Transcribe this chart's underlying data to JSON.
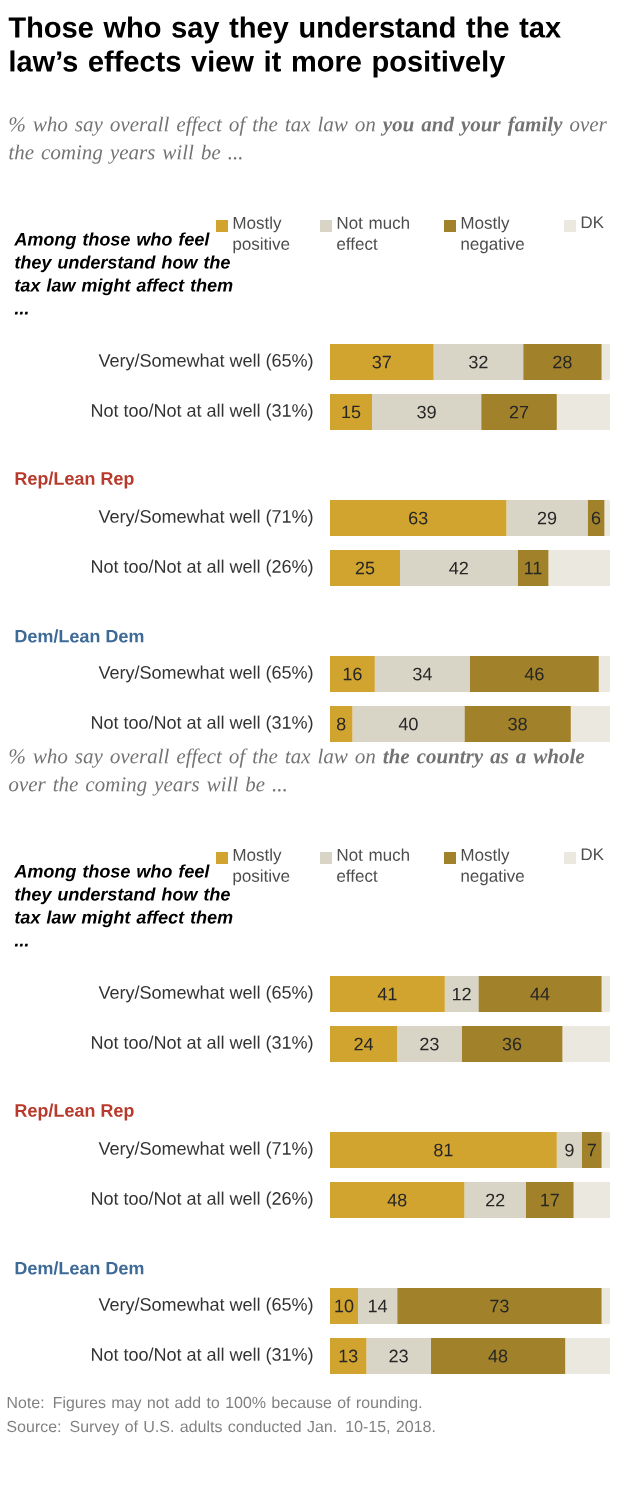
{
  "chart_data": [
    {
      "type": "bar",
      "orientation": "horizontal",
      "stacked": true,
      "legend": "top",
      "title": "Those who say they understand the tax law’s effects view it more positively",
      "subtitle": "% who say overall effect of the tax law on **you and your family** over the coming years will be ...",
      "categories": [
        "Very/Somewhat well (65%)",
        "Not too/Not at all well (31%)",
        "Very/Somewhat well (71%)",
        "Not too/Not at all well (26%)",
        "Very/Somewhat well (65%)",
        "Not too/Not at all well (31%)"
      ],
      "series": [
        {
          "name": "Mostly positive",
          "color": "#d1a32f",
          "values": [
            37,
            15,
            63,
            25,
            16,
            8
          ],
          "value_labels": [
            "37",
            "15",
            "63",
            "25",
            "16",
            "8"
          ]
        },
        {
          "name": "Not much effect",
          "color": "#d9d5c6",
          "values": [
            32,
            39,
            29,
            42,
            34,
            40
          ],
          "value_labels": [
            "32",
            "39",
            "29",
            "42",
            "34",
            "40"
          ]
        },
        {
          "name": "Mostly negative",
          "color": "#a1822a",
          "values": [
            28,
            27,
            6,
            11,
            46,
            38
          ],
          "value_labels": [
            "28",
            "27",
            "6",
            "11",
            "46",
            "38"
          ]
        },
        {
          "name": "DK",
          "color": "#ebe8e0",
          "values": [
            3,
            19,
            2,
            22,
            4,
            14
          ]
        }
      ],
      "annotations": [
        "Among those who feel they understand how the tax law might affect them ...",
        "Rep/Lean Rep",
        "Dem/Lean Dem"
      ]
    },
    {
      "type": "bar",
      "orientation": "horizontal",
      "stacked": true,
      "legend": "top",
      "subtitle": "% who say overall effect of the tax law on **the country as a whole** over the coming years will be ...",
      "categories": [
        "Very/Somewhat well (65%)",
        "Not too/Not at all well (31%)",
        "Very/Somewhat well (71%)",
        "Not too/Not at all well (26%)",
        "Very/Somewhat well (65%)",
        "Not too/Not at all well (31%)"
      ],
      "series": [
        {
          "name": "Mostly positive",
          "color": "#d1a32f",
          "values": [
            41,
            24,
            81,
            48,
            10,
            13
          ],
          "value_labels": [
            "41",
            "24",
            "81",
            "48",
            "10",
            "13"
          ]
        },
        {
          "name": "Not much effect",
          "color": "#d9d5c6",
          "values": [
            12,
            23,
            9,
            22,
            14,
            23
          ],
          "value_labels": [
            "12",
            "23",
            "9",
            "22",
            "14",
            "23"
          ]
        },
        {
          "name": "Mostly negative",
          "color": "#a1822a",
          "values": [
            44,
            36,
            7,
            17,
            73,
            48
          ],
          "value_labels": [
            "44",
            "36",
            "7",
            "17",
            "73",
            "48"
          ]
        },
        {
          "name": "DK",
          "color": "#ebe8e0",
          "values": [
            3,
            17,
            3,
            13,
            3,
            16
          ]
        }
      ],
      "annotations": [
        "Among those who feel they understand how the tax law might affect them ...",
        "Rep/Lean Rep",
        "Dem/Lean Dem",
        "Note: Figures may not add to 100% because of rounding.",
        "Source: Survey of U.S. adults conducted Jan. 10-15, 2018."
      ]
    }
  ]
}
